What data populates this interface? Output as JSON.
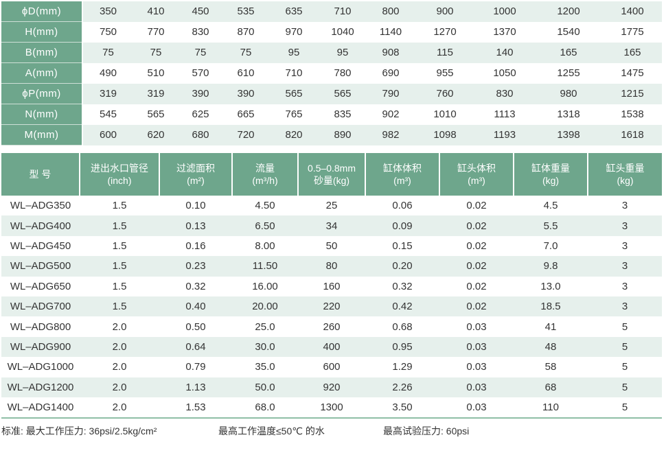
{
  "dimensions": [
    {
      "label": "ϕD(mm)",
      "values": [
        "350",
        "410",
        "450",
        "535",
        "635",
        "710",
        "800",
        "900",
        "1000",
        "1200",
        "1400"
      ]
    },
    {
      "label": "H(mm)",
      "values": [
        "750",
        "770",
        "830",
        "870",
        "970",
        "1040",
        "1140",
        "1270",
        "1370",
        "1540",
        "1775"
      ]
    },
    {
      "label": "B(mm)",
      "values": [
        "75",
        "75",
        "75",
        "75",
        "95",
        "95",
        "908",
        "115",
        "140",
        "165",
        "165"
      ]
    },
    {
      "label": "A(mm)",
      "values": [
        "490",
        "510",
        "570",
        "610",
        "710",
        "780",
        "690",
        "955",
        "1050",
        "1255",
        "1475"
      ]
    },
    {
      "label": "ϕP(mm)",
      "values": [
        "319",
        "319",
        "390",
        "390",
        "565",
        "565",
        "790",
        "760",
        "830",
        "980",
        "1215"
      ]
    },
    {
      "label": "N(mm)",
      "values": [
        "545",
        "565",
        "625",
        "665",
        "765",
        "835",
        "902",
        "1010",
        "1113",
        "1318",
        "1538"
      ]
    },
    {
      "label": "M(mm)",
      "values": [
        "600",
        "620",
        "680",
        "720",
        "820",
        "890",
        "982",
        "1098",
        "1193",
        "1398",
        "1618"
      ]
    }
  ],
  "spec_headers": [
    {
      "l1": "型  号",
      "l2": ""
    },
    {
      "l1": "进出水口管径",
      "l2": "(inch)"
    },
    {
      "l1": "过滤面积",
      "l2": "(m²)"
    },
    {
      "l1": "流量",
      "l2": "(m³/h)"
    },
    {
      "l1": "0.5–0.8mm",
      "l2": "砂量(kg)"
    },
    {
      "l1": "缸体体积",
      "l2": "(m³)"
    },
    {
      "l1": "缸头体积",
      "l2": "(m³)"
    },
    {
      "l1": "缸体重量",
      "l2": "(kg)"
    },
    {
      "l1": "缸头重量",
      "l2": "(kg)"
    }
  ],
  "spec_rows": [
    [
      "WL–ADG350",
      "1.5",
      "0.10",
      "4.50",
      "25",
      "0.06",
      "0.02",
      "4.5",
      "3"
    ],
    [
      "WL–ADG400",
      "1.5",
      "0.13",
      "6.50",
      "34",
      "0.09",
      "0.02",
      "5.5",
      "3"
    ],
    [
      "WL–ADG450",
      "1.5",
      "0.16",
      "8.00",
      "50",
      "0.15",
      "0.02",
      "7.0",
      "3"
    ],
    [
      "WL–ADG500",
      "1.5",
      "0.23",
      "11.50",
      "80",
      "0.20",
      "0.02",
      "9.8",
      "3"
    ],
    [
      "WL–ADG650",
      "1.5",
      "0.32",
      "16.00",
      "160",
      "0.32",
      "0.02",
      "13.0",
      "3"
    ],
    [
      "WL–ADG700",
      "1.5",
      "0.40",
      "20.00",
      "220",
      "0.42",
      "0.02",
      "18.5",
      "3"
    ],
    [
      "WL–ADG800",
      "2.0",
      "0.50",
      "25.0",
      "260",
      "0.68",
      "0.03",
      "41",
      "5"
    ],
    [
      "WL–ADG900",
      "2.0",
      "0.64",
      "30.0",
      "400",
      "0.95",
      "0.03",
      "48",
      "5"
    ],
    [
      "WL–ADG1000",
      "2.0",
      "0.79",
      "35.0",
      "600",
      "1.29",
      "0.03",
      "58",
      "5"
    ],
    [
      "WL–ADG1200",
      "2.0",
      "1.13",
      "50.0",
      "920",
      "2.26",
      "0.03",
      "68",
      "5"
    ],
    [
      "WL–ADG1400",
      "2.0",
      "1.53",
      "68.0",
      "1300",
      "3.50",
      "0.03",
      "110",
      "5"
    ]
  ],
  "footer": {
    "standard": "标准: 最大工作压力: 36psi/2.5kg/cm²",
    "temperature": "最高工作温度≤50℃ 的水",
    "test_pressure": "最高试验压力: 60psi"
  },
  "colors": {
    "header_green": "#6ea68c",
    "row_tint": "#e6f0ec"
  }
}
